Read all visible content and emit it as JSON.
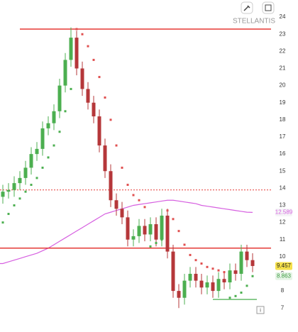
{
  "chart_data": {
    "type": "candlestick",
    "title": "STELLANTIS",
    "categories": [
      null,
      null,
      null,
      null,
      null,
      null,
      null,
      null,
      null,
      null,
      null,
      null,
      null,
      null,
      null,
      null,
      null,
      null,
      null,
      null,
      null,
      null,
      null,
      null,
      null,
      null,
      null,
      null,
      null,
      null,
      null,
      null,
      null,
      null,
      null,
      null,
      null,
      null,
      null,
      null,
      null,
      null,
      null,
      null,
      null
    ],
    "open": [
      13.5,
      13.8,
      13.9,
      14.3,
      14.6,
      15.2,
      16.0,
      16.3,
      17.5,
      17.8,
      18.5,
      20.0,
      21.5,
      22.8,
      21.0,
      19.8,
      19.0,
      18.2,
      16.5,
      15.0,
      13.3,
      12.8,
      12.3,
      11.0,
      11.2,
      11.8,
      11.3,
      11.9,
      11.0,
      12.4,
      10.3,
      8.0,
      7.6,
      8.6,
      9.0,
      8.6,
      8.2,
      8.5,
      8.0,
      8.7,
      8.5,
      9.2,
      9.0,
      10.3,
      9.8
    ],
    "high": [
      14.2,
      14.3,
      14.7,
      15.0,
      15.6,
      16.4,
      16.7,
      17.9,
      18.2,
      18.9,
      20.4,
      21.9,
      23.4,
      23.2,
      21.4,
      20.2,
      19.4,
      18.6,
      16.9,
      15.4,
      13.7,
      13.2,
      12.7,
      11.6,
      12.2,
      12.2,
      12.3,
      12.3,
      12.8,
      12.8,
      10.7,
      8.4,
      9.0,
      9.4,
      9.4,
      9.0,
      8.9,
      8.9,
      9.1,
      9.1,
      9.6,
      9.6,
      10.7,
      10.7,
      10.2
    ],
    "low": [
      13.1,
      13.4,
      13.5,
      13.9,
      14.2,
      14.8,
      15.6,
      15.9,
      17.1,
      17.4,
      18.1,
      19.6,
      21.1,
      20.6,
      19.4,
      18.6,
      17.8,
      16.1,
      14.6,
      12.9,
      12.4,
      11.9,
      10.6,
      10.6,
      10.8,
      10.9,
      10.9,
      10.6,
      10.6,
      9.9,
      7.6,
      7.0,
      7.2,
      8.2,
      8.2,
      7.8,
      7.8,
      7.6,
      7.6,
      8.1,
      8.1,
      8.6,
      8.6,
      9.4,
      9.1
    ],
    "close": [
      13.8,
      13.9,
      14.3,
      14.6,
      15.2,
      16.0,
      16.3,
      17.5,
      17.8,
      18.5,
      20.0,
      21.5,
      22.8,
      21.0,
      19.8,
      19.0,
      18.2,
      16.5,
      15.0,
      13.3,
      12.8,
      12.3,
      11.0,
      11.2,
      11.8,
      11.3,
      11.9,
      11.0,
      12.4,
      10.3,
      8.0,
      7.6,
      8.6,
      9.0,
      8.6,
      8.2,
      8.5,
      8.0,
      8.7,
      8.5,
      9.2,
      9.0,
      10.3,
      9.8,
      9.457
    ],
    "up_color": "#4caf50",
    "down_color": "#b5373a",
    "sar": [
      12.0,
      12.5,
      13.0,
      13.4,
      13.8,
      14.2,
      14.6,
      15.2,
      15.8,
      16.5,
      17.3,
      18.5,
      19.8,
      23.3,
      23.0,
      22.3,
      21.5,
      20.5,
      19.3,
      18.0,
      16.5,
      15.2,
      14.2,
      13.6,
      13.3,
      12.9,
      10.6,
      10.8,
      11.0,
      12.7,
      12.2,
      11.5,
      10.7,
      10.1,
      9.8,
      9.6,
      9.4,
      9.3,
      9.2,
      9.1,
      7.6,
      7.7,
      7.9,
      8.3,
      8.863
    ],
    "sar_up_color": "#4caf50",
    "sar_down_color": "#e05050",
    "ma": [
      9.6,
      9.7,
      9.8,
      9.9,
      10.0,
      10.1,
      10.2,
      10.35,
      10.5,
      10.7,
      10.9,
      11.1,
      11.3,
      11.5,
      11.7,
      11.9,
      12.1,
      12.3,
      12.5,
      12.6,
      12.7,
      12.8,
      12.9,
      13.0,
      13.05,
      13.1,
      13.15,
      13.2,
      13.25,
      13.3,
      13.3,
      13.25,
      13.2,
      13.15,
      13.1,
      13.0,
      12.95,
      12.9,
      12.85,
      12.8,
      12.75,
      12.7,
      12.65,
      12.6,
      12.589
    ],
    "ma_color": "#d65fe0",
    "hlines": [
      {
        "value": 23.3,
        "color": "#e53935",
        "style": "solid",
        "from": 3
      },
      {
        "value": 13.9,
        "color": "#e53935",
        "style": "dotted",
        "from": 0
      },
      {
        "value": 10.5,
        "color": "#e53935",
        "style": "solid",
        "from": 0
      },
      {
        "value": 7.5,
        "color": "#66bb6a",
        "style": "solid",
        "from": 37
      }
    ],
    "price_labels": [
      {
        "value": 12.589,
        "color": "#d65fe0",
        "background": "#f4f4f6"
      },
      {
        "value": 9.457,
        "color": "#222222",
        "background": "#f5e04a"
      },
      {
        "value": 8.863,
        "color": "#3d9b40",
        "background": "#e6f4e6"
      }
    ],
    "ylim": [
      5.6,
      25
    ],
    "yticks": [
      7,
      8,
      9,
      10,
      11,
      12,
      13,
      14,
      15,
      16,
      17,
      18,
      19,
      20,
      21,
      22,
      23,
      24
    ]
  }
}
